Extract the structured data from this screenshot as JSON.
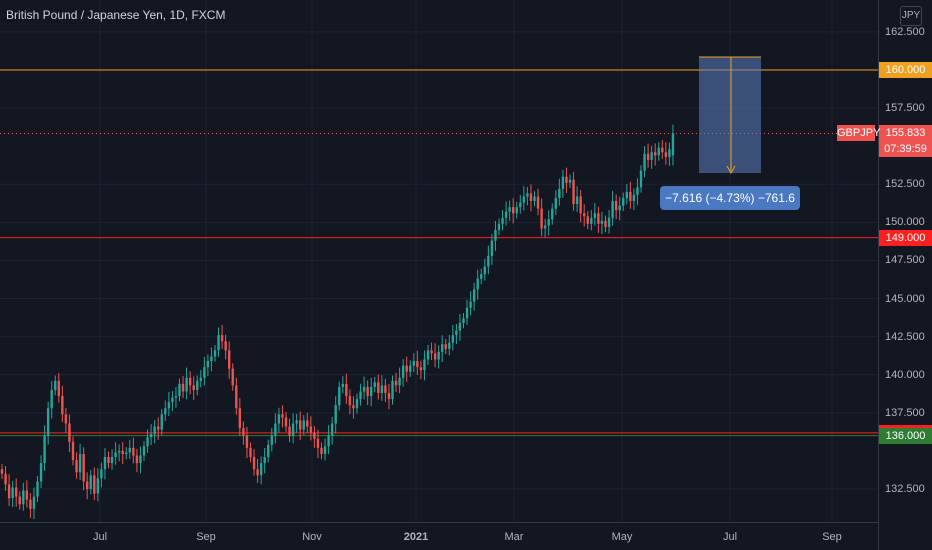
{
  "title": "British Pound / Japanese Yen, 1D, FXCM",
  "currency": "JPY",
  "price_ticks": [
    "162.500",
    "157.500",
    "152.500",
    "150.000",
    "147.500",
    "145.000",
    "142.500",
    "140.000",
    "137.500",
    "132.500"
  ],
  "time_ticks": [
    "Jul",
    "Sep",
    "Nov",
    "2021",
    "Mar",
    "May",
    "Jul",
    "Sep"
  ],
  "symbol": "GBPJPY",
  "last_price": "155.833",
  "countdown": "07:39:59",
  "hlines": [
    {
      "value": 160.0,
      "label": "160.000",
      "color": "#f0a020",
      "label_bg": "#f0a020"
    },
    {
      "value": 149.0,
      "label": "149.000",
      "color": "#ff1f1f",
      "label_bg": "#ff1f1f"
    },
    {
      "value": 136.181,
      "label": "136.181",
      "color": "#ff1f1f",
      "label_bg": "#ff1f1f"
    },
    {
      "value": 136.0,
      "label": "136.000",
      "color": "#2e7d32",
      "label_bg": "#2e7d32"
    }
  ],
  "measure_text": "−7.616 (−4.73%) −761.6",
  "colors": {
    "up": "#26a69a",
    "down": "#ef5350",
    "bg": "#131722"
  },
  "chart_data": {
    "type": "candlestick",
    "ylim": [
      131.0,
      163.5
    ],
    "closes": [
      133.5,
      132.8,
      131.9,
      132.6,
      132.0,
      131.5,
      132.4,
      131.8,
      131.2,
      132.0,
      133.0,
      134.2,
      136.0,
      137.8,
      139.0,
      139.6,
      138.6,
      137.4,
      136.8,
      135.6,
      134.4,
      133.6,
      134.8,
      133.0,
      132.5,
      133.4,
      132.2,
      133.2,
      133.8,
      134.6,
      134.2,
      134.6,
      134.9,
      135.0,
      134.8,
      134.9,
      135.2,
      134.7,
      134.2,
      134.7,
      135.3,
      135.9,
      136.1,
      136.6,
      136.4,
      137.4,
      137.8,
      138.2,
      138.5,
      138.6,
      139.4,
      138.9,
      139.8,
      139.3,
      139.0,
      139.6,
      139.8,
      140.5,
      140.9,
      141.2,
      141.6,
      142.6,
      142.2,
      141.6,
      140.4,
      139.3,
      137.8,
      136.5,
      136.0,
      135.2,
      134.6,
      133.8,
      133.4,
      134.2,
      134.6,
      135.4,
      136.0,
      136.8,
      137.4,
      137.2,
      136.6,
      136.0,
      136.8,
      137.0,
      136.4,
      137.0,
      136.6,
      136.2,
      135.8,
      135.2,
      134.8,
      135.3,
      136.0,
      136.8,
      138.0,
      139.2,
      139.4,
      138.6,
      138.0,
      137.8,
      138.4,
      138.9,
      139.2,
      138.6,
      139.2,
      139.5,
      138.8,
      139.3,
      138.8,
      138.4,
      139.6,
      139.3,
      139.8,
      140.6,
      140.2,
      140.6,
      140.9,
      140.5,
      140.3,
      141.0,
      141.6,
      141.4,
      141.0,
      141.5,
      142.0,
      141.7,
      142.1,
      142.6,
      142.9,
      143.4,
      143.7,
      144.4,
      144.8,
      145.6,
      146.3,
      146.6,
      147.1,
      147.8,
      148.8,
      149.5,
      149.9,
      150.3,
      150.7,
      151.0,
      150.6,
      151.0,
      151.3,
      151.7,
      151.9,
      151.4,
      151.7,
      150.9,
      149.6,
      149.8,
      150.2,
      150.9,
      151.6,
      152.2,
      153.0,
      152.6,
      152.8,
      151.2,
      151.7,
      150.6,
      150.4,
      149.9,
      150.3,
      150.6,
      149.9,
      150.1,
      149.7,
      150.3,
      151.4,
      150.8,
      151.1,
      151.6,
      152.0,
      151.4,
      151.8,
      152.3,
      153.4,
      154.5,
      154.1,
      154.6,
      154.4,
      154.9,
      154.6,
      154.3,
      154.8,
      155.833
    ]
  }
}
